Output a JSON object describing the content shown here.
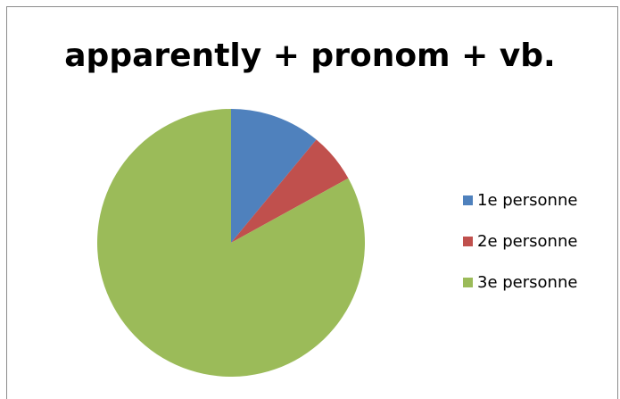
{
  "chart_data": {
    "type": "pie",
    "title": "apparently + pronom + vb.",
    "categories": [
      "1e personne",
      "2e personne",
      "3e personne"
    ],
    "values": [
      11,
      6,
      83
    ],
    "colors": [
      "#4f81bd",
      "#c0504d",
      "#9bbb59"
    ],
    "legend_position": "right",
    "start_angle": "12 o'clock",
    "direction": "clockwise"
  }
}
